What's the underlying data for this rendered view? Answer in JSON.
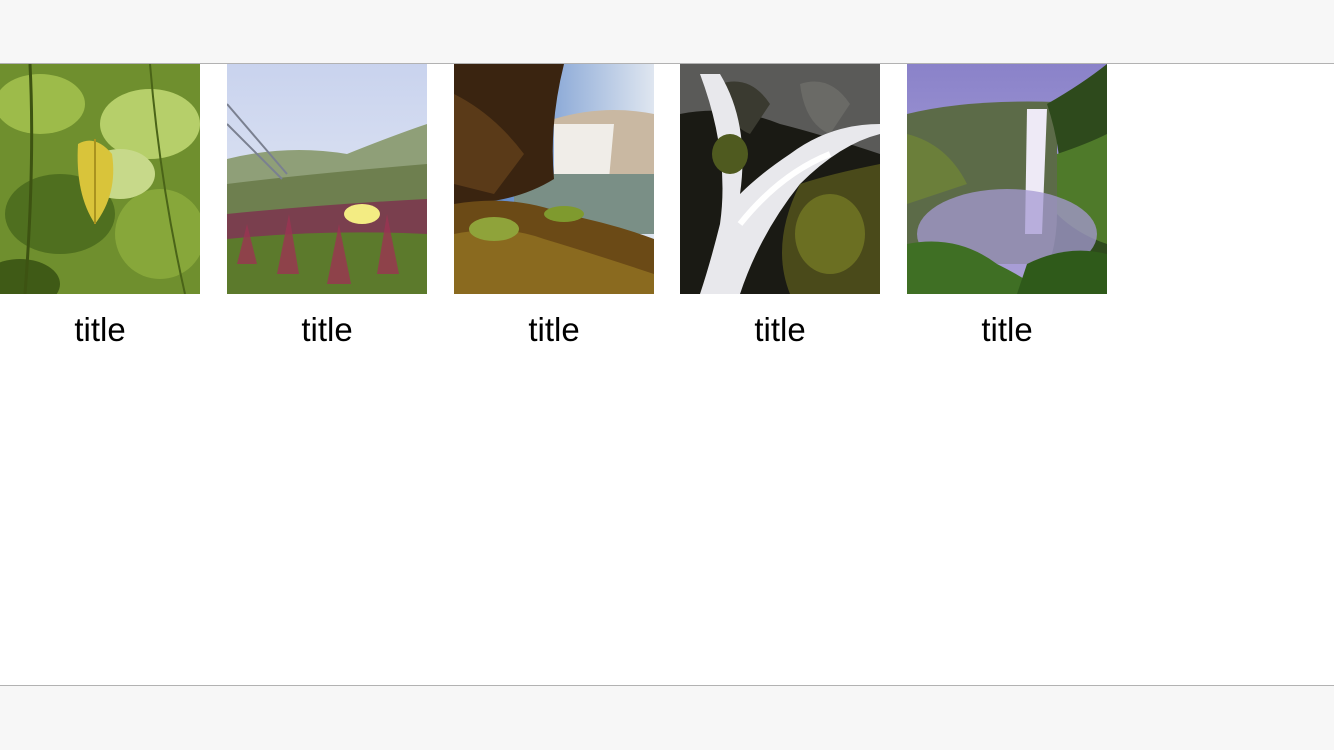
{
  "gallery": {
    "items": [
      {
        "title": "title",
        "image": "green-leaves-photo"
      },
      {
        "title": "title",
        "image": "flower-field-photo"
      },
      {
        "title": "title",
        "image": "waterfall-cliff-photo"
      },
      {
        "title": "title",
        "image": "waterfall-rocks-photo"
      },
      {
        "title": "title",
        "image": "misty-waterfall-photo"
      }
    ]
  }
}
